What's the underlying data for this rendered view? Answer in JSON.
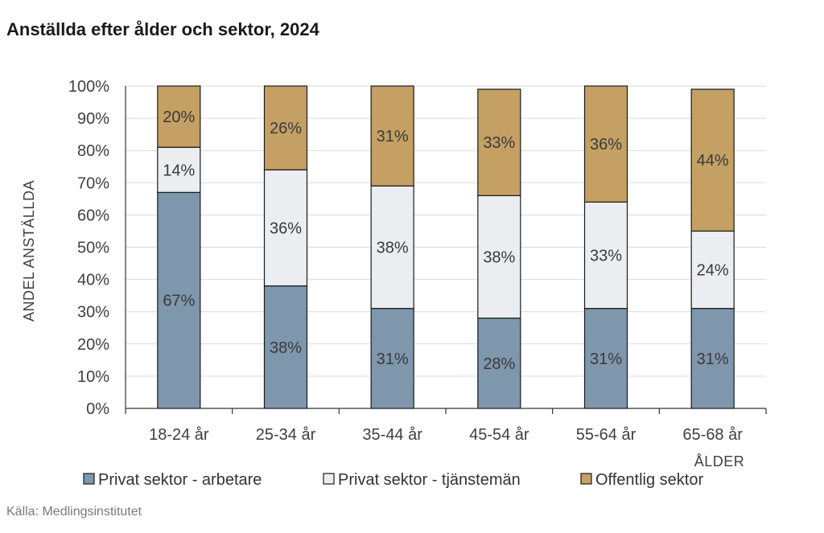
{
  "title": "Anställda efter ålder och sektor, 2024",
  "source": "Källa: Medlingsinstitutet",
  "chart_data": {
    "type": "bar",
    "stacked": true,
    "title": "Anställda efter ålder och sektor, 2024",
    "xlabel": "ÅLDER",
    "ylabel": "ANDEL ANSTÄLLDA",
    "ylim": [
      0,
      100
    ],
    "yticks": [
      "0%",
      "10%",
      "20%",
      "30%",
      "40%",
      "50%",
      "60%",
      "70%",
      "80%",
      "90%",
      "100%"
    ],
    "grid": true,
    "legend": "bottom",
    "categories": [
      "18-24 år",
      "25-34 år",
      "35-44 år",
      "45-54 år",
      "55-64 år",
      "65-68 år"
    ],
    "series": [
      {
        "name": "Privat sektor - arbetare",
        "color": "#7f97ac",
        "values": [
          67,
          38,
          31,
          28,
          31,
          31
        ],
        "labels": [
          "67%",
          "38%",
          "31%",
          "28%",
          "31%",
          "31%"
        ]
      },
      {
        "name": "Privat sektor - tjänstemän",
        "color": "#ebedf0",
        "values": [
          14,
          36,
          38,
          38,
          33,
          24
        ],
        "labels": [
          "14%",
          "36%",
          "38%",
          "38%",
          "33%",
          "24%"
        ]
      },
      {
        "name": "Offentlig sektor",
        "color": "#c4a064",
        "values": [
          20,
          26,
          31,
          33,
          36,
          44
        ],
        "labels": [
          "20%",
          "26%",
          "31%",
          "33%",
          "36%",
          "44%"
        ]
      }
    ]
  }
}
